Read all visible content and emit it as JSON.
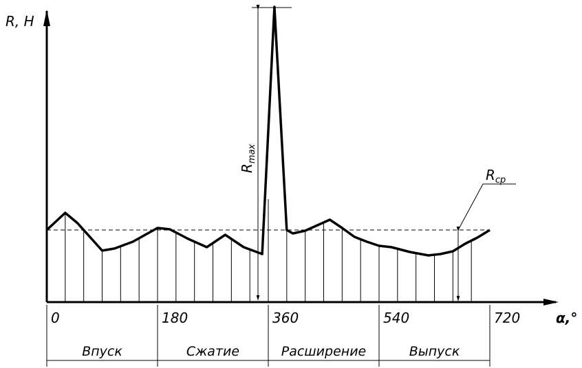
{
  "chart_data": {
    "type": "line",
    "ylabel": "R, H",
    "xlabel": "α,°",
    "x_ticks": [
      "0",
      "180",
      "360",
      "540",
      "720"
    ],
    "phases": [
      "Впуск",
      "Сжатие",
      "Расширение",
      "Выпуск"
    ],
    "annotations": {
      "rmax_main": "R",
      "rmax_sub": "max",
      "rcp_main": "R",
      "rcp_sub": "cp"
    },
    "reference_line": {
      "label": "R_cp",
      "style": "dashed"
    },
    "xlim": [
      0,
      720
    ],
    "grid_x_step_deg": 30,
    "series": [
      {
        "x": [
          0,
          30,
          50,
          70,
          90,
          110,
          140,
          160,
          180,
          200,
          230,
          260,
          290,
          320,
          350,
          370,
          390,
          400,
          420,
          440,
          460,
          480,
          500,
          520,
          540,
          560,
          590,
          620,
          640,
          660,
          680,
          700,
          720
        ],
        "y": [
          105,
          130,
          115,
          95,
          75,
          78,
          88,
          98,
          108,
          106,
          92,
          80,
          98,
          80,
          70,
          430,
          105,
          100,
          104,
          112,
          120,
          108,
          95,
          88,
          82,
          80,
          73,
          68,
          70,
          74,
          85,
          94,
          105
        ]
      }
    ]
  }
}
